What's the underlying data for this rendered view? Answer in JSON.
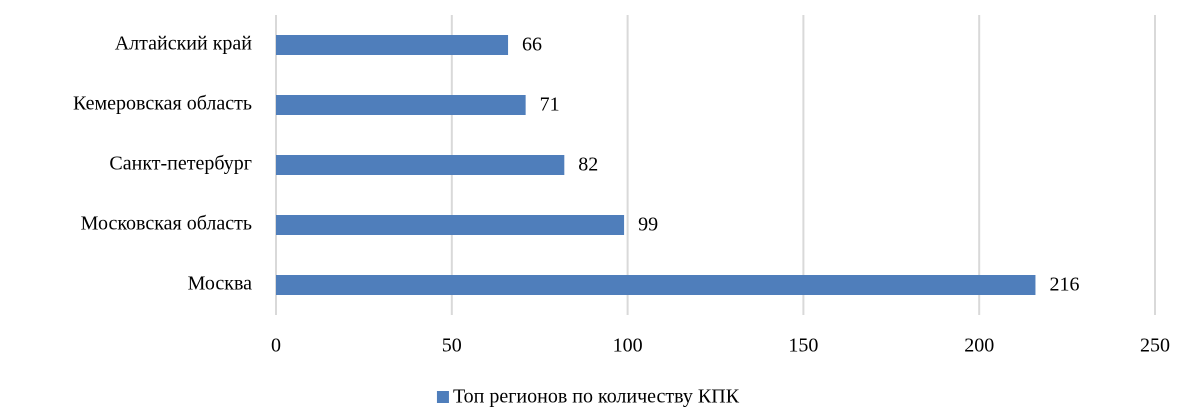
{
  "chart_data": {
    "type": "bar",
    "orientation": "horizontal",
    "categories": [
      "Алтайский край",
      "Кемеровская область",
      "Санкт-петербург",
      "Московская область",
      "Москва"
    ],
    "series": [
      {
        "name": "Топ регионов по количеству КПК",
        "color": "#4f7ebb",
        "values": [
          66,
          71,
          82,
          99,
          216
        ]
      }
    ],
    "xlim": [
      0,
      250
    ],
    "xticks": [
      0,
      50,
      100,
      150,
      200,
      250
    ],
    "grid": true,
    "legend": "bottom"
  }
}
